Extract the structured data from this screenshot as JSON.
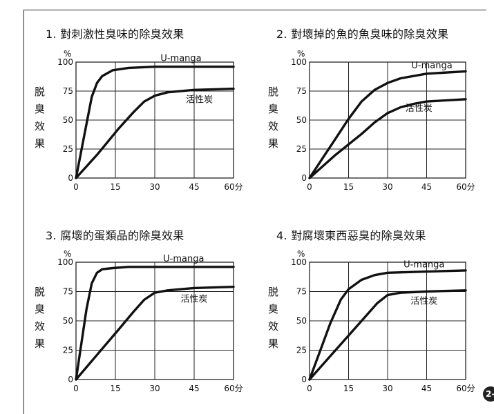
{
  "badge": "2-",
  "chart_data": [
    {
      "type": "line",
      "title": "1. 對刺激性臭味的除臭效果",
      "y_unit": "%",
      "ylabel": "脱臭效果",
      "x_ticks": [
        "0",
        "15",
        "30",
        "45",
        "60分"
      ],
      "y_ticks": [
        "0",
        "25",
        "50",
        "75",
        "100"
      ],
      "xlim": [
        0,
        60
      ],
      "ylim": [
        0,
        100
      ],
      "grid": true,
      "series": [
        {
          "name": "U-manga",
          "x": [
            0,
            3,
            6,
            8,
            10,
            14,
            20,
            30,
            45,
            60
          ],
          "y": [
            0,
            35,
            70,
            82,
            88,
            93,
            95,
            96,
            96,
            96
          ]
        },
        {
          "name": "活性炭",
          "x": [
            0,
            8,
            16,
            22,
            26,
            30,
            35,
            45,
            60
          ],
          "y": [
            0,
            20,
            42,
            57,
            66,
            71,
            74,
            76,
            77
          ]
        }
      ]
    },
    {
      "type": "line",
      "title": "2. 對壞掉的魚的魚臭味的除臭效果",
      "y_unit": "%",
      "ylabel": "脱臭效果",
      "x_ticks": [
        "0",
        "15",
        "30",
        "45",
        "60分"
      ],
      "y_ticks": [
        "0",
        "25",
        "50",
        "75",
        "100"
      ],
      "xlim": [
        0,
        60
      ],
      "ylim": [
        0,
        100
      ],
      "grid": true,
      "series": [
        {
          "name": "U-manga",
          "x": [
            0,
            5,
            10,
            15,
            20,
            25,
            30,
            35,
            45,
            60
          ],
          "y": [
            0,
            17,
            34,
            51,
            66,
            76,
            82,
            86,
            90,
            92
          ]
        },
        {
          "name": "活性炭",
          "x": [
            0,
            10,
            20,
            25,
            30,
            35,
            40,
            45,
            60
          ],
          "y": [
            0,
            20,
            38,
            48,
            56,
            61,
            64,
            66,
            68
          ]
        }
      ]
    },
    {
      "type": "line",
      "title": "3. 腐壞的蛋類品的除臭效果",
      "y_unit": "%",
      "ylabel": "脱臭效果",
      "x_ticks": [
        "0",
        "15",
        "30",
        "45",
        "60分"
      ],
      "y_ticks": [
        "0",
        "25",
        "50",
        "75",
        "100"
      ],
      "xlim": [
        0,
        60
      ],
      "ylim": [
        0,
        100
      ],
      "grid": true,
      "series": [
        {
          "name": "U-manga",
          "x": [
            0,
            2,
            4,
            6,
            8,
            10,
            14,
            20,
            30,
            45,
            60
          ],
          "y": [
            0,
            30,
            60,
            82,
            91,
            94,
            95,
            96,
            96,
            96,
            96
          ]
        },
        {
          "name": "活性炭",
          "x": [
            0,
            8,
            16,
            22,
            26,
            30,
            35,
            45,
            60
          ],
          "y": [
            0,
            21,
            42,
            58,
            68,
            74,
            76,
            78,
            79
          ]
        }
      ]
    },
    {
      "type": "line",
      "title": "4. 對腐壞東西惡臭的除臭效果",
      "y_unit": "%",
      "ylabel": "脱臭效果",
      "x_ticks": [
        "0",
        "15",
        "30",
        "45",
        "60分"
      ],
      "y_ticks": [
        "0",
        "25",
        "50",
        "75",
        "100"
      ],
      "xlim": [
        0,
        60
      ],
      "ylim": [
        0,
        100
      ],
      "grid": true,
      "series": [
        {
          "name": "U-manga",
          "x": [
            0,
            4,
            8,
            12,
            15,
            20,
            25,
            30,
            45,
            60
          ],
          "y": [
            0,
            24,
            48,
            68,
            77,
            85,
            89,
            91,
            92,
            93
          ]
        },
        {
          "name": "活性炭",
          "x": [
            0,
            8,
            16,
            22,
            26,
            30,
            35,
            45,
            60
          ],
          "y": [
            0,
            20,
            40,
            55,
            65,
            72,
            74,
            75,
            76
          ]
        }
      ]
    }
  ],
  "colors": {
    "curve": "#111111",
    "grid": "#222222",
    "badge": "#222222"
  }
}
